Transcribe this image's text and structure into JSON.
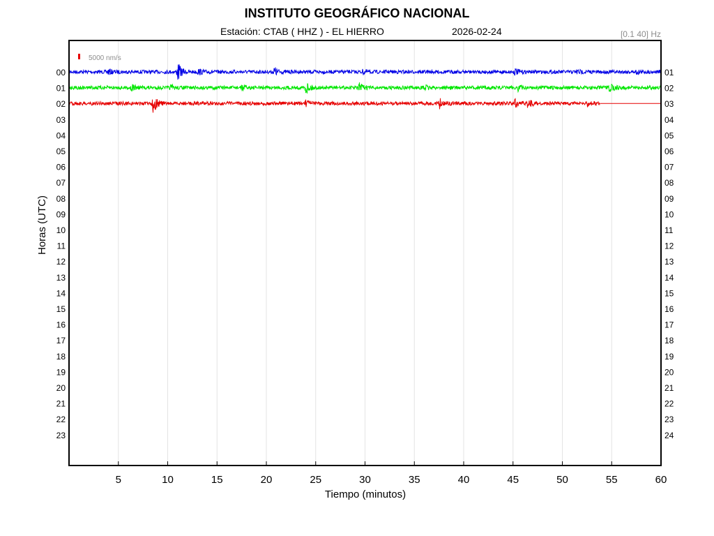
{
  "header": {
    "title": "INSTITUTO GEOGRÁFICO NACIONAL",
    "station": "Estación:  CTAB ( HHZ ) - EL HIERRO",
    "date": "2026-02-24",
    "filter": "[0.1 40] Hz"
  },
  "chart_data": {
    "type": "line",
    "title": "INSTITUTO GEOGRÁFICO NACIONAL",
    "xlabel": "Tiempo (minutos)",
    "ylabel": "Horas (UTC)",
    "xlim": [
      0,
      60
    ],
    "x_ticks": [
      5,
      10,
      15,
      20,
      25,
      30,
      35,
      40,
      45,
      50,
      55,
      60
    ],
    "left_hour_labels": [
      "00",
      "01",
      "02",
      "03",
      "04",
      "05",
      "06",
      "07",
      "08",
      "09",
      "10",
      "11",
      "12",
      "13",
      "14",
      "15",
      "16",
      "17",
      "18",
      "19",
      "20",
      "21",
      "22",
      "23"
    ],
    "right_hour_labels": [
      "01",
      "02",
      "03",
      "04",
      "05",
      "06",
      "07",
      "08",
      "09",
      "10",
      "11",
      "12",
      "13",
      "14",
      "15",
      "16",
      "17",
      "18",
      "19",
      "20",
      "21",
      "22",
      "23",
      "24"
    ],
    "grid": "vertical",
    "scale_bar": {
      "label": "5000 nm/s",
      "color": "#e60000"
    },
    "traces": [
      {
        "hour": "00",
        "color": "#0000e6",
        "end_minute": 60,
        "events": [
          {
            "minute": 4.0,
            "amplitude": 0.25
          },
          {
            "minute": 11.0,
            "amplitude": 1.0
          },
          {
            "minute": 13.1,
            "amplitude": 0.25
          },
          {
            "minute": 20.8,
            "amplitude": 0.5
          },
          {
            "minute": 29.8,
            "amplitude": 0.2
          },
          {
            "minute": 45.2,
            "amplitude": 0.3
          },
          {
            "minute": 51.5,
            "amplitude": 0.2
          },
          {
            "minute": 57.5,
            "amplitude": 0.2
          }
        ]
      },
      {
        "hour": "01",
        "color": "#00e600",
        "end_minute": 60,
        "events": [
          {
            "minute": 6.3,
            "amplitude": 0.35
          },
          {
            "minute": 10.3,
            "amplitude": 0.25
          },
          {
            "minute": 17.5,
            "amplitude": 0.3
          },
          {
            "minute": 24.0,
            "amplitude": 0.65
          },
          {
            "minute": 29.4,
            "amplitude": 0.5
          },
          {
            "minute": 36.0,
            "amplitude": 0.25
          },
          {
            "minute": 45.5,
            "amplitude": 0.35
          },
          {
            "minute": 54.8,
            "amplitude": 0.45
          }
        ]
      },
      {
        "hour": "02",
        "color": "#e60000",
        "end_minute": 53.8,
        "events": [
          {
            "minute": 8.5,
            "amplitude": 1.0
          },
          {
            "minute": 24.0,
            "amplitude": 0.3
          },
          {
            "minute": 37.5,
            "amplitude": 0.55
          },
          {
            "minute": 45.2,
            "amplitude": 0.45
          },
          {
            "minute": 46.5,
            "amplitude": 0.45
          },
          {
            "minute": 52.5,
            "amplitude": 0.25
          }
        ]
      }
    ]
  }
}
